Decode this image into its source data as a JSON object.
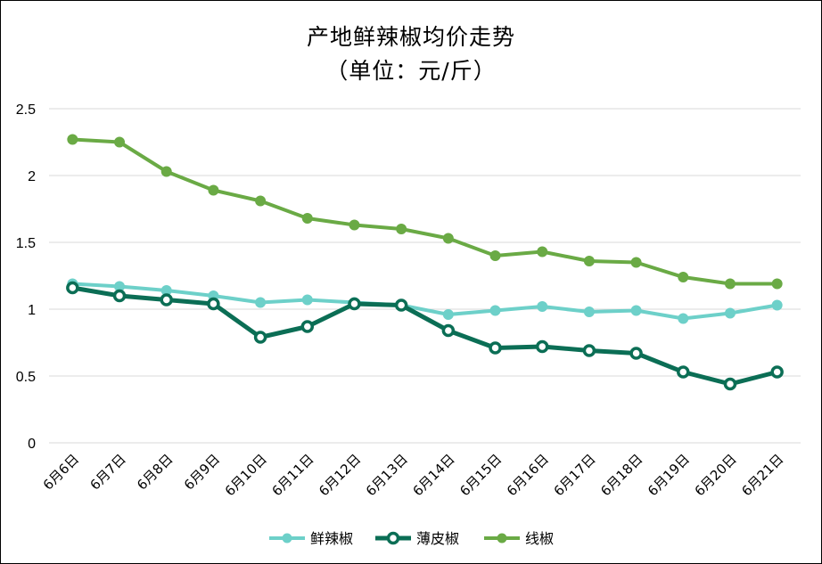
{
  "chart_data": {
    "type": "line",
    "title": "产地鲜辣椒均价走势",
    "subtitle": "（单位：元/斤）",
    "categories": [
      "6月6日",
      "6月7日",
      "6月8日",
      "6月9日",
      "6月10日",
      "6月11日",
      "6月12日",
      "6月13日",
      "6月14日",
      "6月15日",
      "6月16日",
      "6月17日",
      "6月18日",
      "6月19日",
      "6月20日",
      "6月21日"
    ],
    "yticks": [
      "0",
      "0.5",
      "1",
      "1.5",
      "2",
      "2.5"
    ],
    "ylim": [
      0,
      2.5
    ],
    "grid": true,
    "legend_position": "bottom",
    "series": [
      {
        "name": "鲜辣椒",
        "color": "#6dd0c9",
        "marker": "filled-circle",
        "values": [
          1.19,
          1.17,
          1.14,
          1.1,
          1.05,
          1.07,
          1.05,
          1.03,
          0.96,
          0.99,
          1.02,
          0.98,
          0.99,
          0.93,
          0.97,
          1.03
        ]
      },
      {
        "name": "薄皮椒",
        "color": "#0b6e55",
        "marker": "hollow-circle",
        "values": [
          1.16,
          1.1,
          1.07,
          1.04,
          0.79,
          0.87,
          1.04,
          1.03,
          0.84,
          0.71,
          0.72,
          0.69,
          0.67,
          0.53,
          0.44,
          0.53
        ]
      },
      {
        "name": "线椒",
        "color": "#6aaa45",
        "marker": "filled-circle",
        "values": [
          2.27,
          2.25,
          2.03,
          1.89,
          1.81,
          1.68,
          1.63,
          1.6,
          1.53,
          1.4,
          1.43,
          1.36,
          1.35,
          1.24,
          1.19,
          1.19
        ]
      }
    ]
  }
}
